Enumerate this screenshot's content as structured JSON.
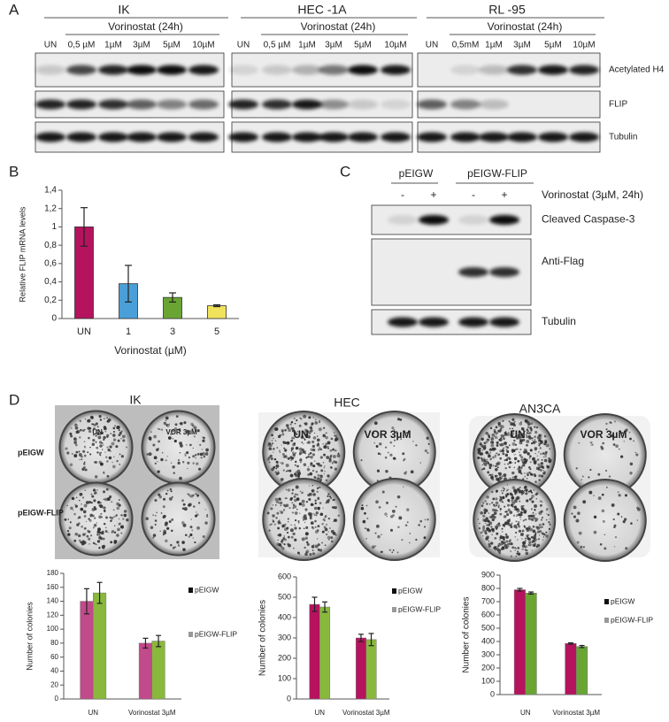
{
  "panel_labels": [
    "A",
    "B",
    "C",
    "D"
  ],
  "panel_a": {
    "groups": [
      {
        "name": "IK",
        "treatment": "Vorinostat (24h)",
        "lanes": [
          "UN",
          "0,5 µM",
          "1µM",
          "3µM",
          "5µM",
          "10µM"
        ]
      },
      {
        "name": "HEC -1A",
        "treatment": "Vorinostat (24h)",
        "lanes": [
          "UN",
          "0,5 µM",
          "1µM",
          "3µM",
          "5µM",
          "10µM"
        ]
      },
      {
        "name": "RL -95",
        "treatment": "Vorinostat (24h)",
        "lanes": [
          "UN",
          "0,5mM",
          "1µM",
          "3µM",
          "5µM",
          "10µM"
        ]
      }
    ],
    "rows": [
      "Acetylated H4",
      "FLIP",
      "Tubulin"
    ]
  },
  "panel_c": {
    "groups": [
      "pEIGW",
      "pEIGW-FLIP"
    ],
    "lanes": [
      "-",
      "+",
      "-",
      "+"
    ],
    "treatment": "Vorinostat (3µM, 24h)",
    "rows": [
      "Cleaved Caspase-3",
      "Anti-Flag",
      "Tubulin"
    ]
  },
  "panel_d": {
    "plates": [
      {
        "title": "IK",
        "columns": [
          "UN",
          "VOR 3µM"
        ],
        "rows": [
          "pEIGW",
          "pEIGW-FLIP"
        ]
      },
      {
        "title": "HEC",
        "columns": [
          "UN",
          "VOR 3µM"
        ]
      },
      {
        "title": "AN3CA",
        "columns": [
          "UN",
          "VOR 3µM"
        ]
      }
    ]
  },
  "chart_data": [
    {
      "type": "bar",
      "ylabel": "Relative FLIP mRNA levels",
      "xlabel": "Vorinostat (µM)",
      "categories": [
        "UN",
        "1",
        "3",
        "5"
      ],
      "values": [
        1.0,
        0.38,
        0.23,
        0.14
      ],
      "errors": [
        0.21,
        0.2,
        0.05,
        0.01
      ],
      "colors": [
        "#b5135e",
        "#4a9fd8",
        "#6aa534",
        "#f0e25a"
      ],
      "ylim": [
        0,
        1.4
      ],
      "yticks": [
        0,
        {
          "value": 0.2,
          "label": "0,2"
        },
        {
          "value": 0.4,
          "label": "0,4"
        },
        {
          "value": 0.6,
          "label": "0,6"
        },
        {
          "value": 0.8,
          "label": "0,8"
        },
        1,
        {
          "value": 1.2,
          "label": "1,2"
        },
        {
          "value": 1.4,
          "label": "1,4"
        }
      ]
    },
    {
      "type": "bar",
      "ylabel": "Number of colonies",
      "categories": [
        "UN",
        "Vorinostat 3µM"
      ],
      "series": [
        {
          "name": "pEIGW",
          "color": "#c04a8a",
          "legend_color": "#111111",
          "values": [
            140,
            80
          ],
          "errors": [
            18,
            7
          ]
        },
        {
          "name": "pEIGW-FLIP",
          "color": "#8ab83c",
          "legend_color": "#999999",
          "values": [
            152,
            83
          ],
          "errors": [
            15,
            8
          ]
        }
      ],
      "ylim": [
        0,
        180
      ],
      "yticks": [
        0,
        20,
        40,
        60,
        80,
        100,
        120,
        140,
        160,
        180
      ]
    },
    {
      "type": "bar",
      "ylabel": "Number of colonies",
      "categories": [
        "UN",
        "Vorinostat 3µM"
      ],
      "series": [
        {
          "name": "pEIGW",
          "color": "#b5135e",
          "legend_color": "#111111",
          "values": [
            465,
            300
          ],
          "errors": [
            35,
            18
          ]
        },
        {
          "name": "pEIGW-FLIP",
          "color": "#8ab83c",
          "legend_color": "#999999",
          "values": [
            452,
            292
          ],
          "errors": [
            25,
            30
          ]
        }
      ],
      "ylim": [
        0,
        600
      ],
      "yticks": [
        0,
        100,
        200,
        300,
        400,
        500,
        600
      ]
    },
    {
      "type": "bar",
      "ylabel": "Number of colonies",
      "categories": [
        "UN",
        "Vorinostat 3µM"
      ],
      "series": [
        {
          "name": "pEIGW",
          "color": "#b5135e",
          "legend_color": "#111111",
          "values": [
            790,
            385
          ],
          "errors": [
            10,
            5
          ]
        },
        {
          "name": "pEIGW-FLIP",
          "color": "#6aa534",
          "legend_color": "#999999",
          "values": [
            765,
            362
          ],
          "errors": [
            8,
            8
          ]
        }
      ],
      "ylim": [
        0,
        900
      ],
      "yticks": [
        0,
        100,
        200,
        300,
        400,
        500,
        600,
        700,
        800,
        900
      ]
    }
  ]
}
